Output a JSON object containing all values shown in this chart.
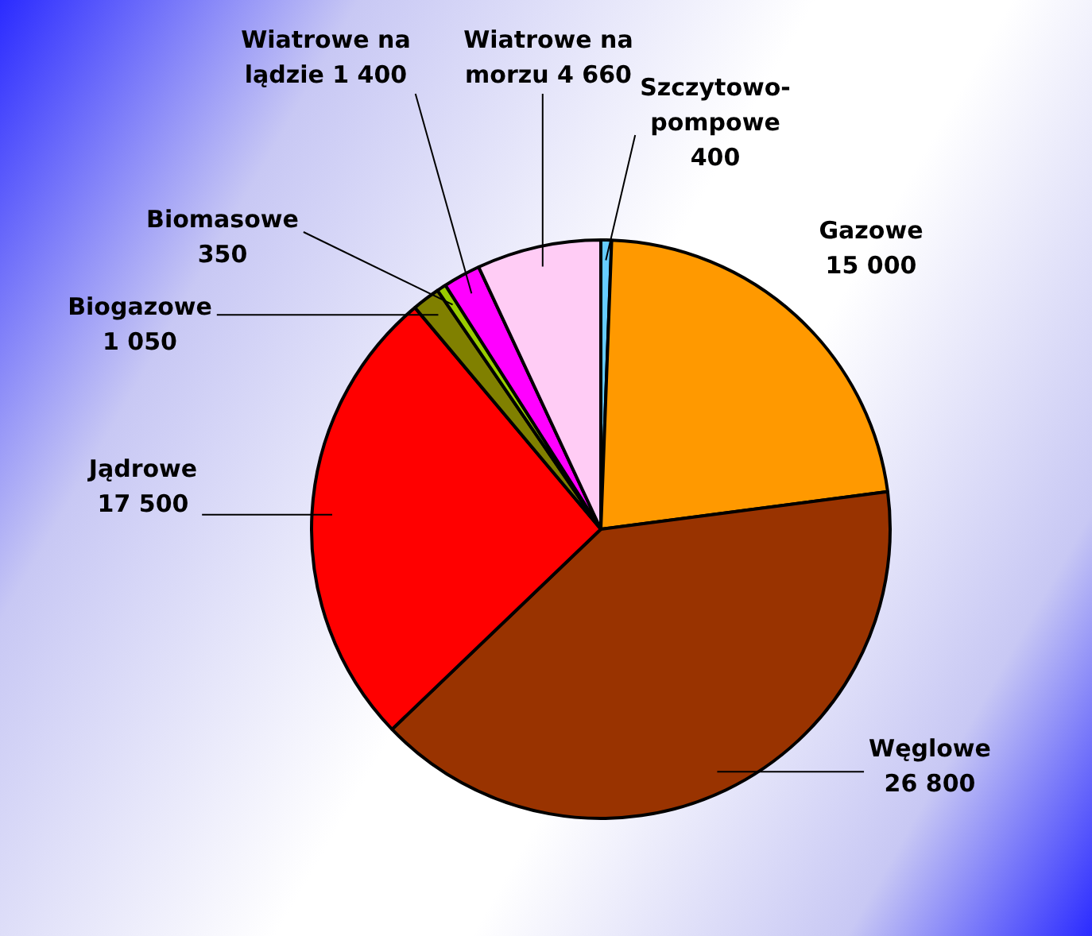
{
  "chart_data": {
    "type": "pie",
    "categories": [
      "Szczytowo-pompowe",
      "Gazowe",
      "Węglowe",
      "Jądrowe",
      "Biogazowe",
      "Biomasowe",
      "Wiatrowe na lądzie",
      "Wiatrowe na morzu"
    ],
    "values": [
      400,
      15000,
      26800,
      17500,
      1050,
      350,
      1400,
      4660
    ],
    "value_labels": [
      "400",
      "15 000",
      "26 800",
      "17 500",
      "1 050",
      "350",
      "1 400",
      "4 660"
    ],
    "colors": [
      "#66ccff",
      "#ff9900",
      "#993300",
      "#ff0000",
      "#808000",
      "#99cc00",
      "#ff00ff",
      "#ffccf5"
    ],
    "legend": false
  }
}
